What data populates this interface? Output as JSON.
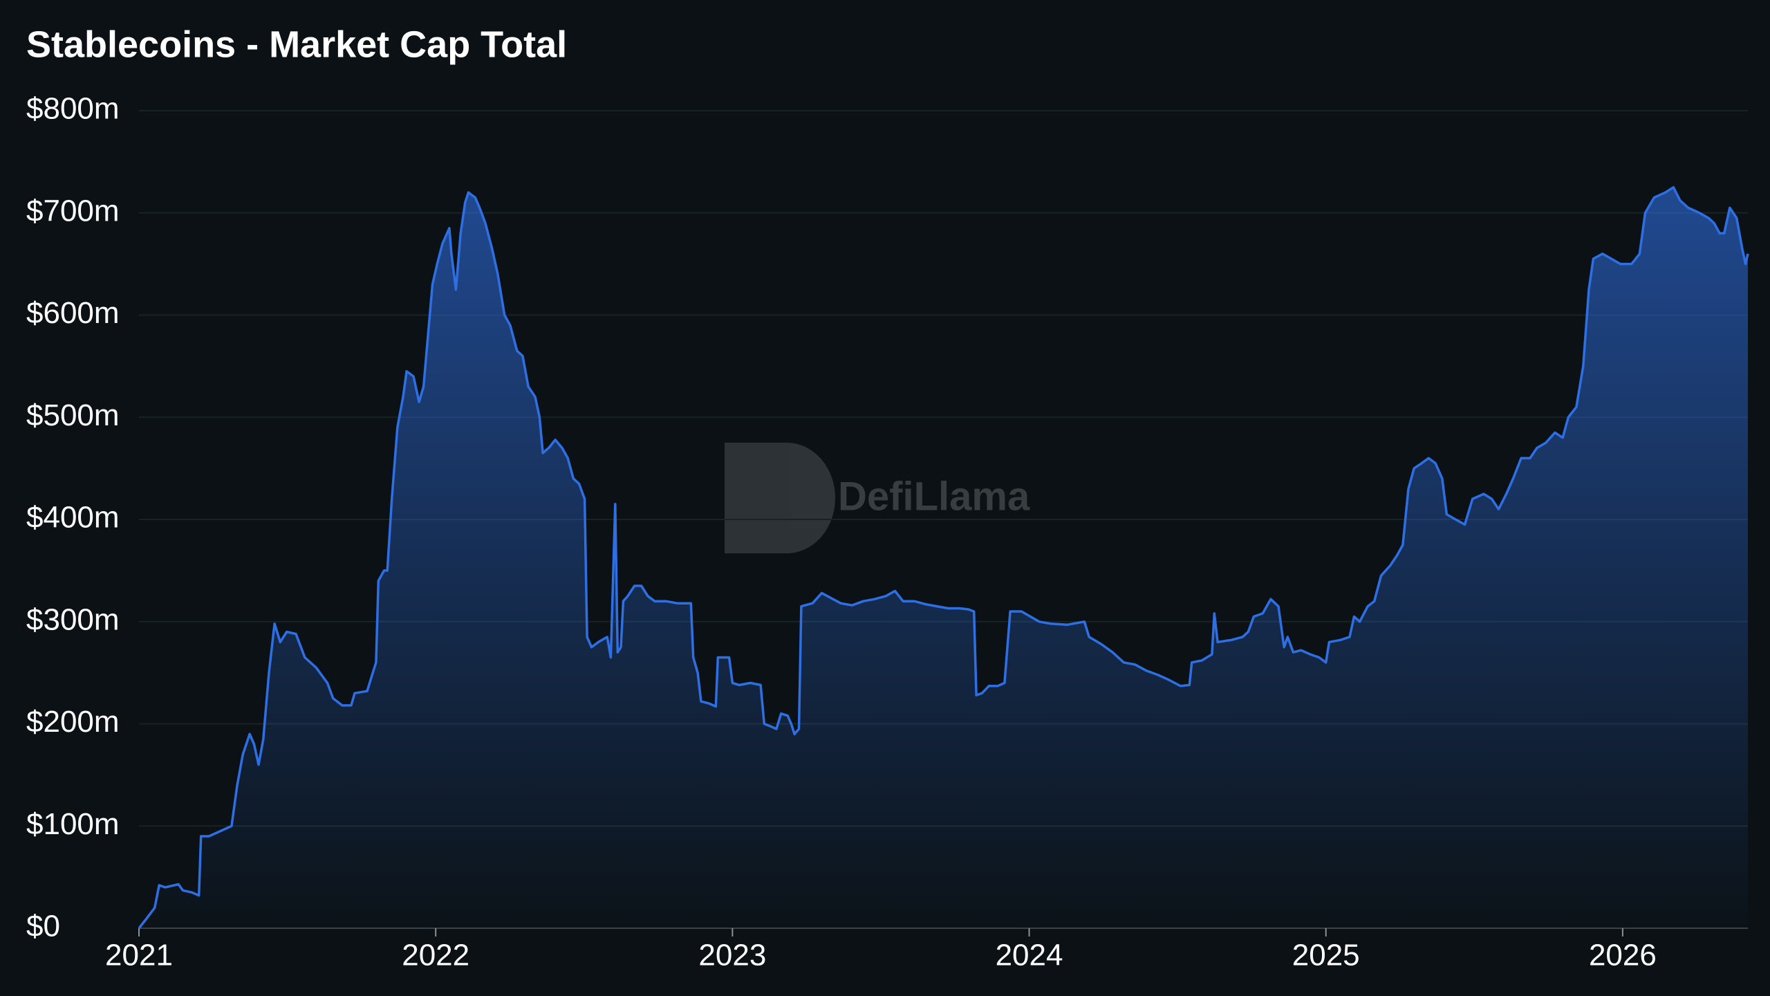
{
  "chart_data": {
    "type": "area",
    "title": "Stablecoins - Market Cap Total",
    "watermark": "DefiLlama",
    "color": "#2f6fe4",
    "grid": true,
    "xlim": [
      2021,
      2026.422
    ],
    "xticks": [
      2021,
      2022,
      2023,
      2024,
      2025,
      2026
    ],
    "ylim": [
      0,
      800000000
    ],
    "yticks": [
      {
        "value": 0,
        "label": "$0"
      },
      {
        "value": 100000000,
        "label": "$100m"
      },
      {
        "value": 200000000,
        "label": "$200m"
      },
      {
        "value": 300000000,
        "label": "$300m"
      },
      {
        "value": 400000000,
        "label": "$400m"
      },
      {
        "value": 500000000,
        "label": "$500m"
      },
      {
        "value": 600000000,
        "label": "$600m"
      },
      {
        "value": 700000000,
        "label": "$700m"
      },
      {
        "value": 800000000,
        "label": "$800m"
      }
    ],
    "x": [
      2021.0,
      2021.027,
      2021.053,
      2021.068,
      2021.088,
      2021.133,
      2021.148,
      2021.179,
      2021.202,
      2021.209,
      2021.236,
      2021.274,
      2021.312,
      2021.331,
      2021.35,
      2021.373,
      2021.388,
      2021.403,
      2021.419,
      2021.438,
      2021.457,
      2021.476,
      2021.498,
      2021.529,
      2021.559,
      2021.597,
      2021.635,
      2021.654,
      2021.685,
      2021.715,
      2021.727,
      2021.769,
      2021.788,
      2021.799,
      2021.807,
      2021.826,
      2021.837,
      2021.852,
      2021.871,
      2021.89,
      2021.902,
      2021.925,
      2021.944,
      2021.959,
      2021.974,
      2021.989,
      2022.005,
      2022.023,
      2022.046,
      2022.053,
      2022.068,
      2022.084,
      2022.099,
      2022.11,
      2022.133,
      2022.148,
      2022.167,
      2022.19,
      2022.209,
      2022.232,
      2022.251,
      2022.274,
      2022.293,
      2022.312,
      2022.335,
      2022.35,
      2022.361,
      2022.381,
      2022.403,
      2022.426,
      2022.445,
      2022.464,
      2022.483,
      2022.502,
      2022.51,
      2022.525,
      2022.548,
      2022.578,
      2022.59,
      2022.605,
      2022.613,
      2022.624,
      2022.632,
      2022.647,
      2022.67,
      2022.693,
      2022.715,
      2022.738,
      2022.776,
      2022.814,
      2022.86,
      2022.868,
      2022.883,
      2022.894,
      2022.921,
      2022.944,
      2022.951,
      2022.989,
      2023.0,
      2023.023,
      2023.061,
      2023.095,
      2023.107,
      2023.133,
      2023.148,
      2023.164,
      2023.186,
      2023.198,
      2023.209,
      2023.224,
      2023.232,
      2023.27,
      2023.301,
      2023.339,
      2023.365,
      2023.403,
      2023.441,
      2023.479,
      2023.517,
      2023.548,
      2023.575,
      2023.613,
      2023.651,
      2023.689,
      2023.727,
      2023.765,
      2023.795,
      2023.814,
      2023.822,
      2023.841,
      2023.864,
      2023.894,
      2023.917,
      2023.936,
      2023.974,
      2024.004,
      2024.034,
      2024.072,
      2024.129,
      2024.186,
      2024.202,
      2024.243,
      2024.281,
      2024.319,
      2024.357,
      2024.395,
      2024.433,
      2024.471,
      2024.51,
      2024.54,
      2024.548,
      2024.582,
      2024.616,
      2024.624,
      2024.635,
      2024.681,
      2024.719,
      2024.738,
      2024.757,
      2024.787,
      2024.814,
      2024.84,
      2024.859,
      2024.871,
      2024.89,
      2024.916,
      2024.947,
      2024.977,
      2025.0,
      2025.011,
      2025.049,
      2025.08,
      2025.095,
      2025.114,
      2025.141,
      2025.163,
      2025.186,
      2025.217,
      2025.24,
      2025.259,
      2025.278,
      2025.297,
      2025.323,
      2025.346,
      2025.369,
      2025.392,
      2025.407,
      2025.437,
      2025.468,
      2025.494,
      2025.532,
      2025.559,
      2025.582,
      2025.608,
      2025.631,
      2025.658,
      2025.688,
      2025.711,
      2025.741,
      2025.772,
      2025.798,
      2025.817,
      2025.844,
      2025.867,
      2025.886,
      2025.901,
      2025.932,
      2025.962,
      2025.992,
      2026.03,
      2026.057,
      2026.076,
      2026.106,
      2026.144,
      2026.171,
      2026.194,
      2026.221,
      2026.259,
      2026.289,
      2026.308,
      2026.327,
      2026.342,
      2026.361,
      2026.384,
      2026.403,
      2026.414,
      2026.422
    ],
    "values": [
      0,
      10000000,
      20000000,
      42000000,
      40000000,
      43000000,
      37000000,
      35000000,
      32000000,
      90000000,
      90000000,
      95000000,
      100000000,
      140000000,
      170000000,
      190000000,
      180000000,
      160000000,
      185000000,
      250000000,
      298000000,
      280000000,
      290000000,
      288000000,
      265000000,
      255000000,
      240000000,
      225000000,
      218000000,
      218000000,
      230000000,
      232000000,
      250000000,
      260000000,
      340000000,
      350000000,
      350000000,
      420000000,
      490000000,
      520000000,
      545000000,
      540000000,
      515000000,
      530000000,
      580000000,
      630000000,
      650000000,
      670000000,
      685000000,
      660000000,
      625000000,
      680000000,
      710000000,
      720000000,
      715000000,
      705000000,
      690000000,
      665000000,
      640000000,
      600000000,
      590000000,
      565000000,
      560000000,
      530000000,
      520000000,
      500000000,
      465000000,
      470000000,
      478000000,
      470000000,
      460000000,
      440000000,
      435000000,
      420000000,
      285000000,
      275000000,
      280000000,
      285000000,
      265000000,
      415000000,
      270000000,
      275000000,
      320000000,
      325000000,
      335000000,
      335000000,
      325000000,
      320000000,
      320000000,
      318000000,
      318000000,
      265000000,
      250000000,
      222000000,
      220000000,
      217000000,
      265000000,
      265000000,
      240000000,
      238000000,
      240000000,
      238000000,
      200000000,
      197000000,
      195000000,
      210000000,
      208000000,
      200000000,
      190000000,
      195000000,
      315000000,
      318000000,
      328000000,
      322000000,
      318000000,
      316000000,
      320000000,
      322000000,
      325000000,
      330000000,
      320000000,
      320000000,
      317000000,
      315000000,
      313000000,
      313000000,
      312000000,
      310000000,
      228000000,
      230000000,
      237000000,
      237000000,
      240000000,
      310000000,
      310000000,
      305000000,
      300000000,
      298000000,
      297000000,
      300000000,
      285000000,
      278000000,
      270000000,
      260000000,
      258000000,
      252000000,
      248000000,
      243000000,
      237000000,
      238000000,
      260000000,
      262000000,
      268000000,
      308000000,
      280000000,
      282000000,
      285000000,
      290000000,
      305000000,
      308000000,
      322000000,
      315000000,
      275000000,
      285000000,
      270000000,
      272000000,
      268000000,
      265000000,
      260000000,
      280000000,
      282000000,
      285000000,
      305000000,
      300000000,
      315000000,
      320000000,
      345000000,
      355000000,
      365000000,
      375000000,
      430000000,
      450000000,
      455000000,
      460000000,
      455000000,
      440000000,
      405000000,
      400000000,
      395000000,
      420000000,
      425000000,
      420000000,
      410000000,
      425000000,
      440000000,
      460000000,
      460000000,
      470000000,
      475000000,
      485000000,
      480000000,
      500000000,
      510000000,
      550000000,
      625000000,
      655000000,
      660000000,
      655000000,
      650000000,
      650000000,
      660000000,
      700000000,
      715000000,
      720000000,
      725000000,
      712000000,
      705000000,
      700000000,
      695000000,
      690000000,
      680000000,
      680000000,
      705000000,
      695000000,
      665000000,
      650000000,
      660000000
    ]
  }
}
